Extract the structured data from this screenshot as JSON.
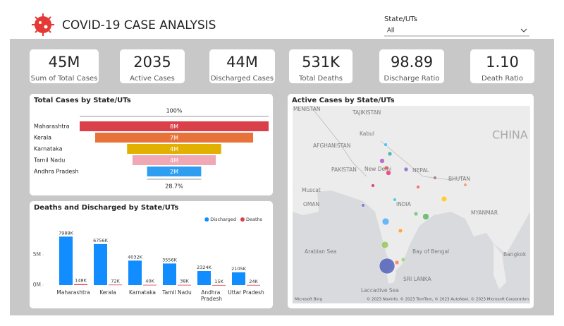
{
  "header": {
    "title": "COVID-19 CASE ANALYSIS",
    "filter_label": "State/UTs",
    "filter_value": "All"
  },
  "kpis": [
    {
      "value": "45M",
      "label": "Sum of Total Cases"
    },
    {
      "value": "2035",
      "label": "Active Cases"
    },
    {
      "value": "44M",
      "label": "Discharged Cases"
    },
    {
      "value": "531K",
      "label": "Total Deaths"
    },
    {
      "value": "98.89",
      "label": "Discharge Ratio"
    },
    {
      "value": "1.10",
      "label": "Death Ratio"
    }
  ],
  "chart_data": [
    {
      "type": "funnel",
      "title": "Total Cases by State/UTs",
      "categories": [
        "Maharashtra",
        "Kerala",
        "Karnataka",
        "Tamil Nadu",
        "Andhra Pradesh"
      ],
      "values": [
        8.17,
        6.83,
        4.07,
        3.6,
        2.34
      ],
      "value_labels": [
        "8M",
        "7M",
        "4M",
        "4M",
        "2M"
      ],
      "colors": [
        "#d9404a",
        "#e8733a",
        "#e1b000",
        "#f0a8b4",
        "#2f9ef0"
      ],
      "top_label": "100%",
      "bottom_label": "28.7%"
    },
    {
      "type": "bar",
      "title": "Deaths and Discharged by State/UTs",
      "categories": [
        "Maharashtra",
        "Kerala",
        "Karnataka",
        "Tamil Nadu",
        "Andhra Pradesh",
        "Uttar Pradesh"
      ],
      "series": [
        {
          "name": "Discharged",
          "color": "#118dff",
          "values": [
            7988000,
            6756000,
            4032000,
            3556000,
            2324000,
            2105000
          ],
          "value_labels": [
            "7988K",
            "6756K",
            "4032K",
            "3556K",
            "2324K",
            "2105K"
          ]
        },
        {
          "name": "Deaths",
          "color": "#d9404a",
          "values": [
            148000,
            72000,
            40000,
            38000,
            15000,
            24000
          ],
          "value_labels": [
            "148K",
            "72K",
            "40K",
            "38K",
            "15K",
            "24K"
          ]
        }
      ],
      "ylim": [
        0,
        10000000
      ],
      "yticks": [
        {
          "value": 0,
          "label": "0M"
        },
        {
          "value": 5000000,
          "label": "5M"
        }
      ],
      "legend": "top-right"
    }
  ],
  "map": {
    "title": "Active Cases by State/UTs",
    "labels": [
      "MENISTAN",
      "TAJIKISTAN",
      "Kabul",
      "AFGHANISTAN",
      "PAKISTAN",
      "New Delhi",
      "NEPAL",
      "BHUTAN",
      "CHINA",
      "Muscat",
      "OMAN",
      "INDIA",
      "MYANMAR",
      "Arabian Sea",
      "Bay of Bengal",
      "Laccadive Sea",
      "SRI LANKA",
      "Bangkok"
    ],
    "brand": "Microsoft Bing",
    "attribution": "© 2023 NavInfo, © 2023 TomTom, © 2023 AutoNavi, © 2023 Microsoft Corporation"
  }
}
